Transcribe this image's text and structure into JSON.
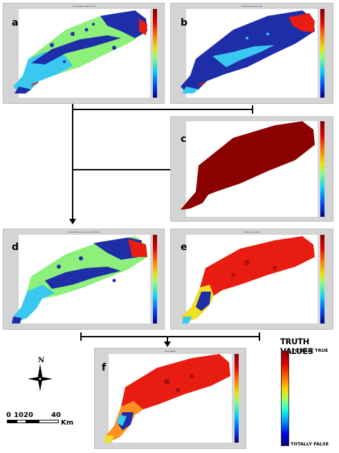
{
  "panels": {
    "a": {
      "label": "a",
      "title": "Low Organic matter level"
    },
    "b": {
      "label": "b",
      "title": "Good soil moisture cap"
    },
    "c": {
      "label": "c",
      "title": ""
    },
    "d": {
      "label": "d",
      "title": "Conservative tools above inhibition"
    },
    "e": {
      "label": "e",
      "title": "Aquifer in stratum"
    },
    "f": {
      "label": "f",
      "title": "Desertability"
    }
  },
  "legend": {
    "title": "TRUTH VALUES",
    "top_label": "TOTALLY TRUE",
    "bottom_label": "TOTALLY FALSE"
  },
  "north_label": "N",
  "scale": {
    "labels": [
      "0",
      "10",
      "20",
      "40"
    ],
    "unit": "Km"
  },
  "colors": {
    "dark_red": "#8b0000",
    "red": "#e81c10",
    "green": "#8cf07a",
    "cyan": "#38c8f0",
    "blue": "#1e2da8"
  }
}
